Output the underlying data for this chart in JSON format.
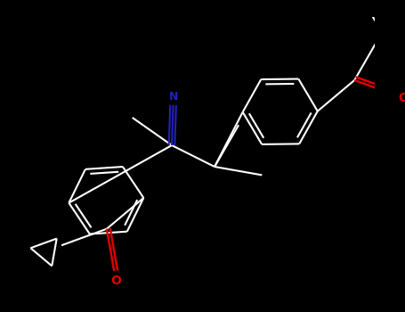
{
  "bg_color": "#000000",
  "bond_color": "#ffffff",
  "cn_color": "#2222bb",
  "o_color": "#dd0000",
  "lw": 1.5,
  "figsize": [
    4.55,
    3.5
  ],
  "dpi": 100,
  "xlim": [
    -3.5,
    3.5
  ],
  "ylim": [
    -2.6,
    2.6
  ]
}
